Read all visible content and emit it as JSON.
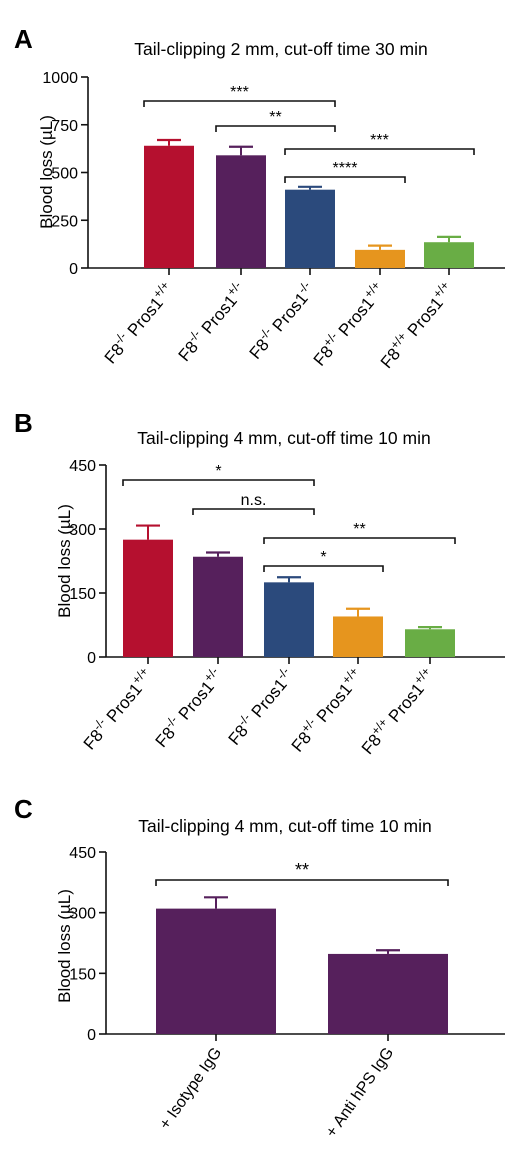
{
  "figure": {
    "colors": {
      "red": "#b5102f",
      "purple": "#56205c",
      "blue": "#2b4a7c",
      "orange": "#e6951e",
      "green": "#69ad45"
    }
  },
  "chart_data": [
    {
      "panel": "A",
      "type": "bar",
      "title": "Tail-clipping 2 mm, cut-off time 30 min",
      "ylabel": "Blood loss (µL)",
      "ylim": [
        0,
        1000
      ],
      "yticks": [
        "0",
        "250",
        "500",
        "750",
        "1000"
      ],
      "categories": [
        {
          "base": "F8",
          "sup1": "-/-",
          "mid": " Pros1",
          "sup2": "+/+"
        },
        {
          "base": "F8",
          "sup1": "-/-",
          "mid": " Pros1",
          "sup2": "+/-"
        },
        {
          "base": "F8",
          "sup1": "-/-",
          "mid": " Pros1",
          "sup2": "-/-"
        },
        {
          "base": "F8",
          "sup1": "+/-",
          "mid": " Pros1",
          "sup2": "+/+"
        },
        {
          "base": "F8",
          "sup1": "+/+",
          "mid": " Pros1",
          "sup2": "+/+"
        }
      ],
      "values": [
        640,
        590,
        410,
        95,
        135
      ],
      "errors": [
        30,
        45,
        15,
        22,
        28
      ],
      "colors": [
        "#b5102f",
        "#56205c",
        "#2b4a7c",
        "#e6951e",
        "#69ad45"
      ],
      "significance": [
        {
          "from": 0,
          "to": 2,
          "label": "***"
        },
        {
          "from": 1,
          "to": 2,
          "label": "**"
        },
        {
          "from": 2,
          "to": 4,
          "label": "***"
        },
        {
          "from": 2,
          "to": 3,
          "label": "****"
        }
      ]
    },
    {
      "panel": "B",
      "type": "bar",
      "title": "Tail-clipping 4 mm, cut-off time 10 min",
      "ylabel": "Blood loss (µL)",
      "ylim": [
        0,
        450
      ],
      "yticks": [
        "0",
        "150",
        "300",
        "450"
      ],
      "categories": [
        {
          "base": "F8",
          "sup1": "-/-",
          "mid": " Pros1",
          "sup2": "+/+"
        },
        {
          "base": "F8",
          "sup1": "-/-",
          "mid": " Pros1",
          "sup2": "+/-"
        },
        {
          "base": "F8",
          "sup1": "-/-",
          "mid": " Pros1",
          "sup2": "-/-"
        },
        {
          "base": "F8",
          "sup1": "+/-",
          "mid": " Pros1",
          "sup2": "+/+"
        },
        {
          "base": "F8",
          "sup1": "+/+",
          "mid": " Pros1",
          "sup2": "+/+"
        }
      ],
      "values": [
        275,
        235,
        175,
        95,
        65
      ],
      "errors": [
        33,
        10,
        12,
        18,
        5
      ],
      "colors": [
        "#b5102f",
        "#56205c",
        "#2b4a7c",
        "#e6951e",
        "#69ad45"
      ],
      "significance": [
        {
          "from": 0,
          "to": 2,
          "label": "*"
        },
        {
          "from": 1,
          "to": 2,
          "label": "n.s."
        },
        {
          "from": 2,
          "to": 4,
          "label": "**"
        },
        {
          "from": 2,
          "to": 3,
          "label": "*"
        }
      ]
    },
    {
      "panel": "C",
      "type": "bar",
      "title": "Tail-clipping 4 mm, cut-off time 10 min",
      "ylabel": "Blood loss (µL)",
      "ylim": [
        0,
        450
      ],
      "yticks": [
        "0",
        "150",
        "300",
        "450"
      ],
      "categories": [
        {
          "base": "+ Isotype IgG"
        },
        {
          "base": "+ Anti hPS IgG"
        }
      ],
      "values": [
        310,
        198
      ],
      "errors": [
        28,
        9
      ],
      "colors": [
        "#56205c",
        "#56205c"
      ],
      "significance": [
        {
          "from": 0,
          "to": 1,
          "label": "**"
        }
      ]
    }
  ]
}
